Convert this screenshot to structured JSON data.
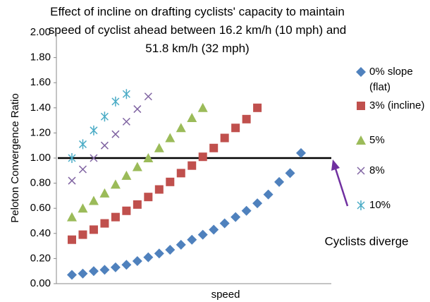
{
  "chart_data": {
    "type": "scatter",
    "title": "Effect of incline on drafting cyclists' capacity to maintain speed of cyclist ahead between 16.2 km/h (10 mph) and 51.8 km/h (32 mph)",
    "x_label": "speed",
    "y_label": "Peloton Convergence Ratio",
    "categories": [
      null,
      null,
      null,
      null,
      null,
      null,
      null,
      null,
      null,
      null,
      null,
      null,
      null,
      null,
      null,
      null,
      null,
      null,
      null,
      null,
      null,
      null
    ],
    "ylim": [
      0,
      2
    ],
    "yticks": [
      {
        "value": 0,
        "label": "0.00"
      },
      {
        "value": 0.2,
        "label": "0.20"
      },
      {
        "value": 0.4,
        "label": "0.40"
      },
      {
        "value": 0.6,
        "label": "0.60"
      },
      {
        "value": 0.8,
        "label": "0.80"
      },
      {
        "value": 1,
        "label": "1.00"
      },
      {
        "value": 1.2,
        "label": "1.20"
      },
      {
        "value": 1.4,
        "label": "1.40"
      },
      {
        "value": 1.6,
        "label": "1.60"
      },
      {
        "value": 1.8,
        "label": "1.80"
      },
      {
        "value": 2,
        "label": "2.00"
      }
    ],
    "reference_line": 1,
    "annotation": "Cyclists diverge",
    "legend_position": "right",
    "series": [
      {
        "name": "0% slope (flat)",
        "color": "#4f81bd",
        "marker": "diamond",
        "values": [
          0.07,
          0.08,
          0.1,
          0.11,
          0.13,
          0.15,
          0.18,
          0.21,
          0.24,
          0.27,
          0.31,
          0.35,
          0.39,
          0.43,
          0.48,
          0.53,
          0.58,
          0.64,
          0.71,
          0.81,
          0.88,
          1.04
        ]
      },
      {
        "name": "3% (incline)",
        "color": "#c0504d",
        "marker": "square",
        "values": [
          0.35,
          0.39,
          0.43,
          0.48,
          0.53,
          0.58,
          0.63,
          0.69,
          0.75,
          0.81,
          0.88,
          0.94,
          1.01,
          1.08,
          1.16,
          1.24,
          1.31,
          1.4,
          null,
          null,
          null,
          null
        ]
      },
      {
        "name": "5%",
        "color": "#9bbb59",
        "marker": "triangle",
        "values": [
          0.53,
          0.6,
          0.66,
          0.72,
          0.79,
          0.86,
          0.93,
          1.0,
          1.08,
          1.16,
          1.24,
          1.32,
          1.4,
          null,
          null,
          null,
          null,
          null,
          null,
          null,
          null,
          null
        ]
      },
      {
        "name": "8%",
        "color": "#8064a2",
        "marker": "x",
        "values": [
          0.82,
          0.91,
          1.0,
          1.1,
          1.19,
          1.29,
          1.39,
          1.49,
          null,
          null,
          null,
          null,
          null,
          null,
          null,
          null,
          null,
          null,
          null,
          null,
          null,
          null
        ]
      },
      {
        "name": "10%",
        "color": "#4bacc6",
        "marker": "star",
        "values": [
          1.0,
          1.11,
          1.22,
          1.33,
          1.45,
          1.51,
          null,
          null,
          null,
          null,
          null,
          null,
          null,
          null,
          null,
          null,
          null,
          null,
          null,
          null,
          null,
          null
        ]
      }
    ]
  }
}
